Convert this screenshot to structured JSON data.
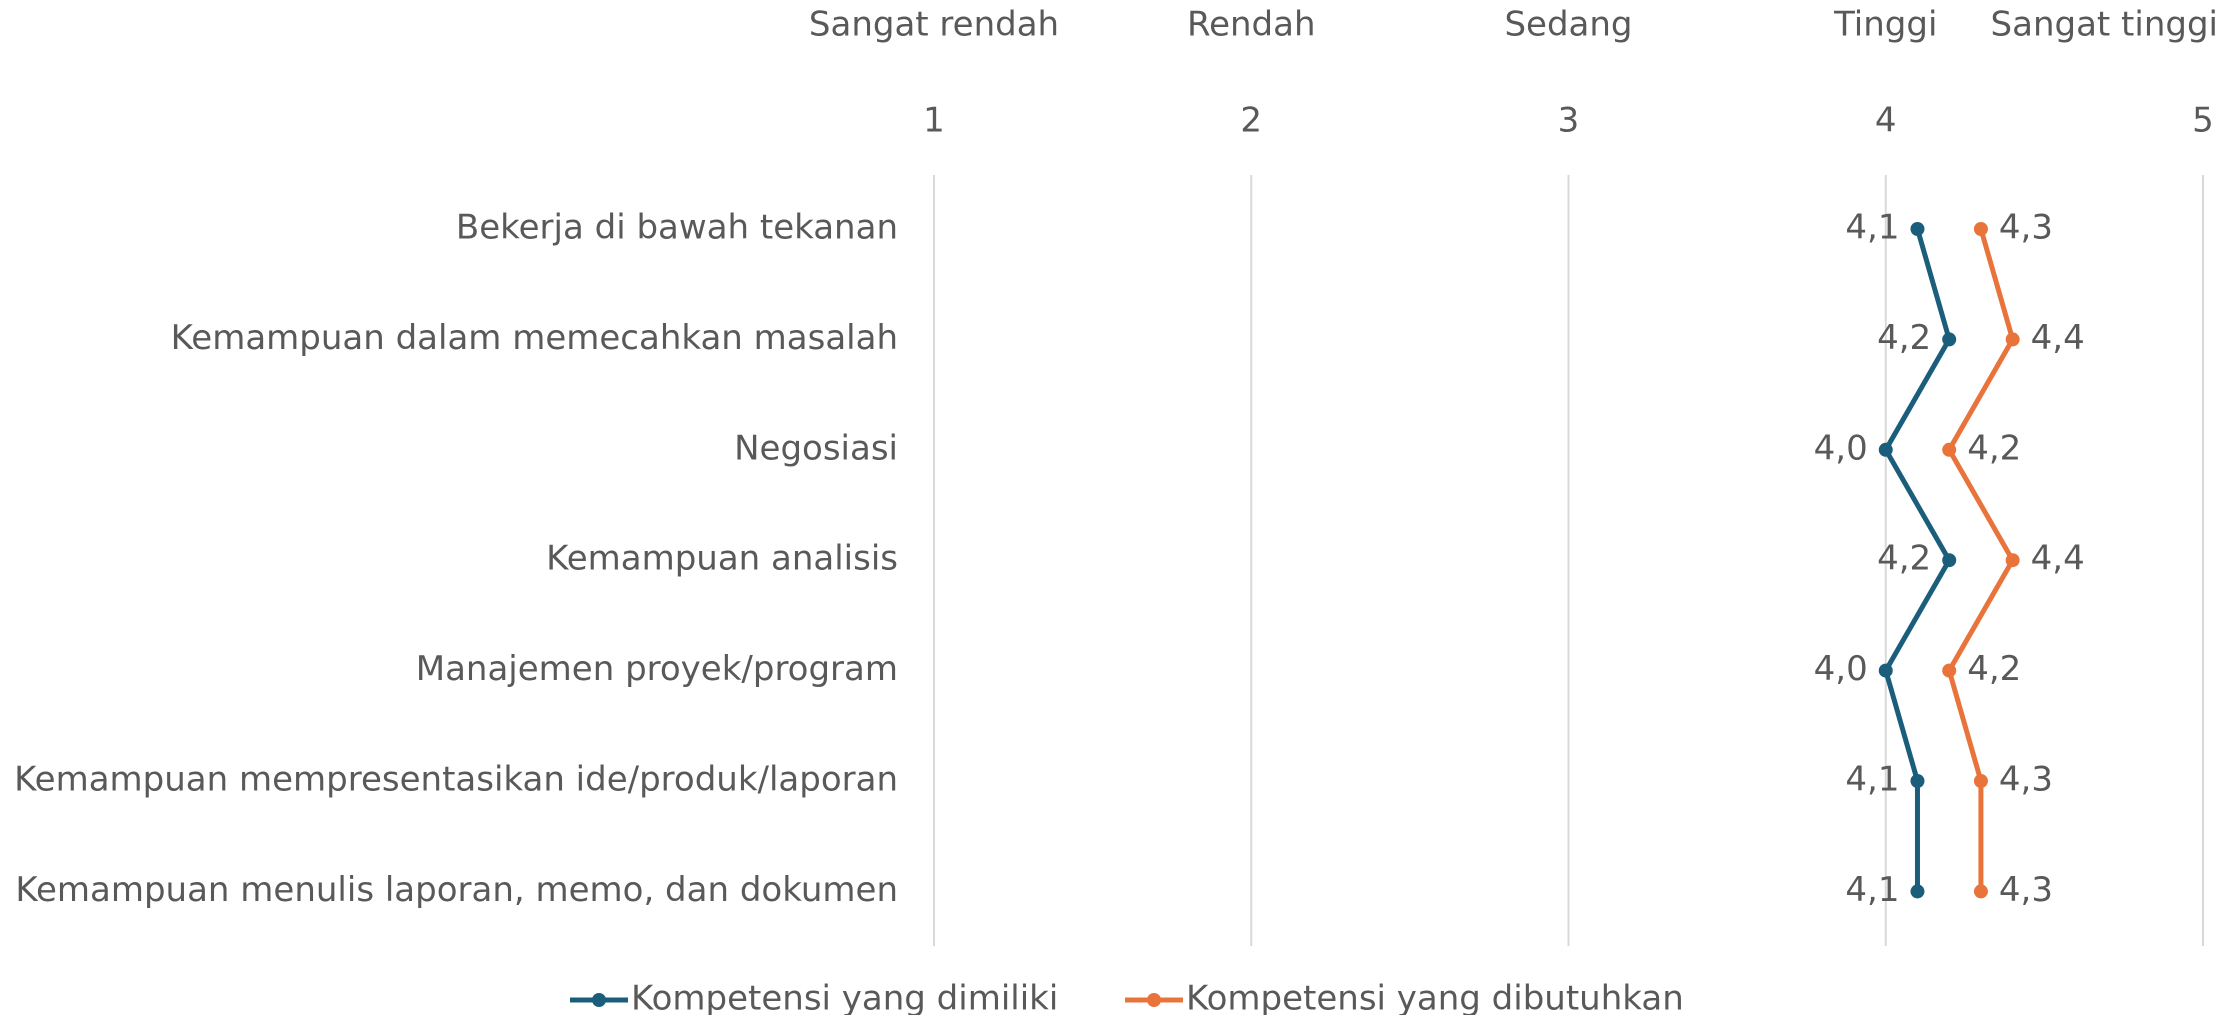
{
  "chart_data": {
    "type": "line",
    "scale_labels": [
      "Sangat rendah",
      "Rendah",
      "Sedang",
      "Tinggi",
      "Sangat tinggi"
    ],
    "categories": [
      "Bekerja di bawah tekanan",
      "Kemampuan dalam memecahkan masalah",
      "Negosiasi",
      "Kemampuan analisis",
      "Manajemen proyek/program",
      "Kemampuan mempresentasikan ide/produk/laporan",
      "Kemampuan menulis laporan, memo, dan dokumen"
    ],
    "series": [
      {
        "name": "Kompetensi yang dimiliki",
        "color": "#1b5e7b",
        "values": [
          4.1,
          4.2,
          4.0,
          4.2,
          4.0,
          4.1,
          4.1
        ],
        "value_labels": [
          "4,1",
          "4,2",
          "4,0",
          "4,2",
          "4,0",
          "4,1",
          "4,1"
        ]
      },
      {
        "name": "Kompetensi yang dibutuhkan",
        "color": "#e8743b",
        "values": [
          4.3,
          4.4,
          4.2,
          4.4,
          4.2,
          4.3,
          4.3
        ],
        "value_labels": [
          "4,3",
          "4,4",
          "4,2",
          "4,4",
          "4,2",
          "4,3",
          "4,3"
        ]
      }
    ],
    "xlim": [
      1,
      5
    ],
    "xticks": [
      1,
      2,
      3,
      4,
      5
    ],
    "grid": true
  }
}
